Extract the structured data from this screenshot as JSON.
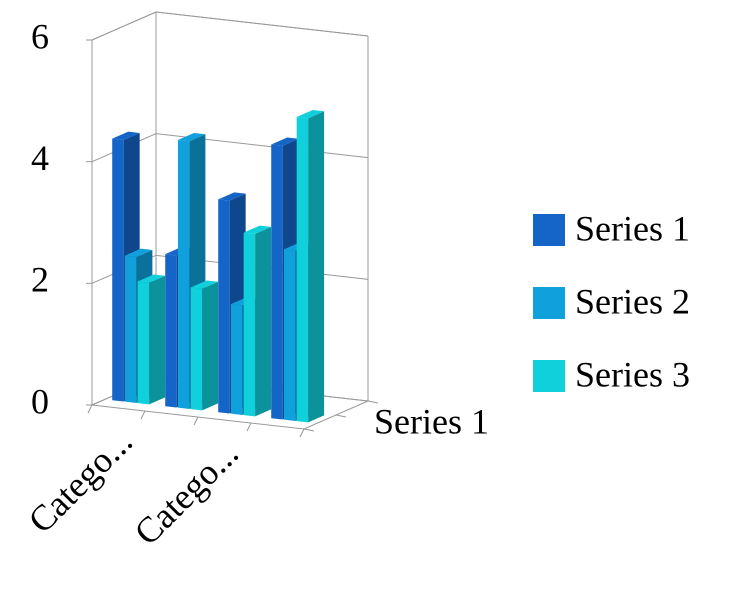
{
  "chart_data": {
    "type": "bar3d",
    "categories": [
      "Catego...",
      null,
      "Catego...",
      null
    ],
    "depth_labels": [
      "Series 1"
    ],
    "series": [
      {
        "name": "Series 1",
        "color": "#1565c8",
        "values": [
          4.3,
          2.5,
          3.5,
          4.5
        ]
      },
      {
        "name": "Series 2",
        "color": "#10a0dc",
        "values": [
          2.4,
          4.4,
          1.8,
          2.8
        ]
      },
      {
        "name": "Series 3",
        "color": "#10d0dc",
        "values": [
          2,
          2,
          3,
          5
        ]
      }
    ],
    "ylim": [
      0,
      6
    ],
    "yticks": [
      0,
      2,
      4,
      6
    ],
    "grid": true,
    "legend": "right"
  }
}
